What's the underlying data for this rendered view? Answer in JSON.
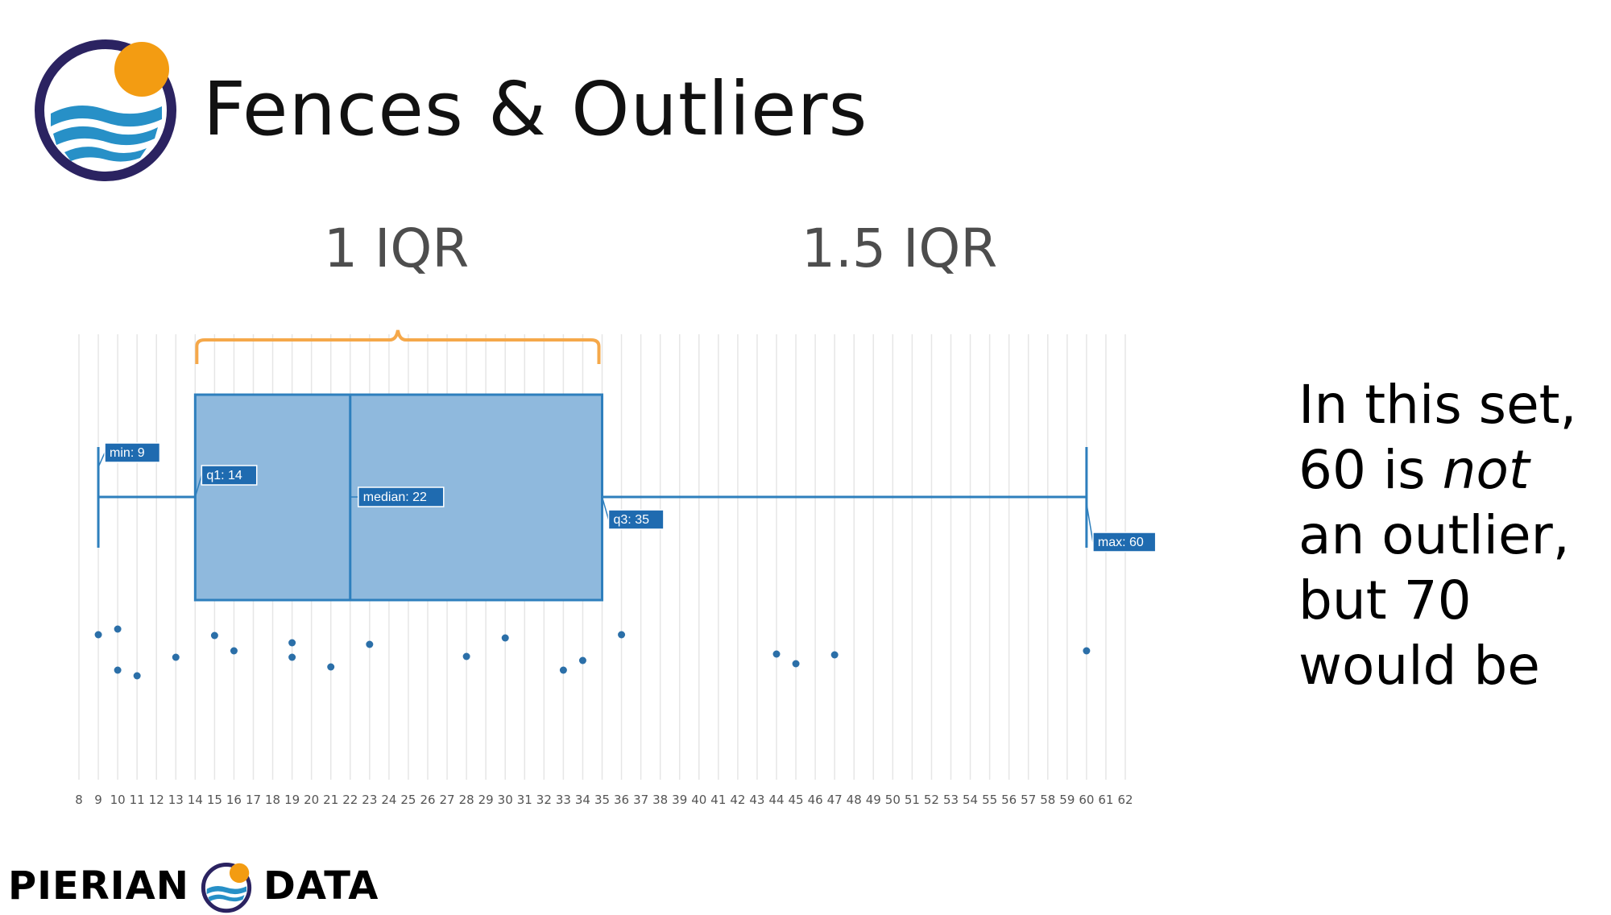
{
  "slide": {
    "title": "Fences & Outliers",
    "iqr_label": "1 IQR",
    "iqr15_label": "1.5 IQR",
    "side_text": {
      "line1": "In this set,",
      "line2_a": "60 is ",
      "line2_em": "not",
      "line3": "an outlier,",
      "line4": "but 70",
      "line5": "would be"
    },
    "footer": {
      "word1": "PIERIAN",
      "word2": "DATA"
    }
  },
  "colors": {
    "box_fill": "#8fb9dd",
    "box_stroke": "#2e7fbd",
    "whisker": "#2e7fbd",
    "label_bg": "#1f6bb0",
    "point": "#2b6fa8",
    "brace": "#f5a84a",
    "grid": "#e6e6e6",
    "tick_text": "#555555",
    "logo_ring": "#2b2361",
    "logo_sun": "#f39c12",
    "logo_wave": "#2790c7"
  },
  "chart_data": {
    "type": "box",
    "orientation": "horizontal",
    "x_ticks": [
      8,
      9,
      10,
      11,
      12,
      13,
      14,
      15,
      16,
      17,
      18,
      19,
      20,
      21,
      22,
      23,
      24,
      25,
      26,
      27,
      28,
      29,
      30,
      31,
      32,
      33,
      34,
      35,
      36,
      37,
      38,
      39,
      40,
      41,
      42,
      43,
      44,
      45,
      46,
      47,
      48,
      49,
      50,
      51,
      52,
      53,
      54,
      55,
      56,
      57,
      58,
      59,
      60,
      61,
      62
    ],
    "xlim": [
      8,
      62
    ],
    "stats": {
      "min": 9,
      "q1": 14,
      "median": 22,
      "q3": 35,
      "max": 60
    },
    "annotations": {
      "min": "min: 9",
      "q1": "q1: 14",
      "median": "median: 22",
      "q3": "q3: 35",
      "max": "max: 60"
    },
    "points": [
      9,
      10,
      10,
      11,
      13,
      15,
      16,
      19,
      19,
      21,
      23,
      28,
      30,
      33,
      34,
      36,
      44,
      45,
      47,
      60
    ],
    "brace": {
      "from": 14,
      "to": 35,
      "label": "1 IQR"
    }
  }
}
